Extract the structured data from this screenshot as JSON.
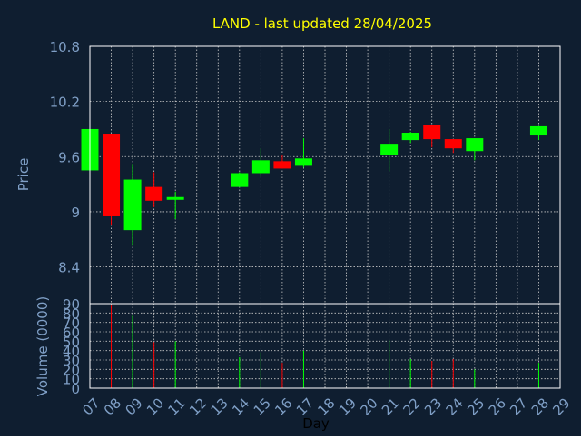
{
  "colors": {
    "background": "#0f1e30",
    "plot_background": "#0f1e30",
    "frame": "#ffffff",
    "grid": "#c8c8c8",
    "title": "#ffff00",
    "axis_text": "#7f9fc6",
    "up": "#00ff00",
    "down": "#ff0000"
  },
  "chart_data": [
    {
      "type": "candlestick",
      "title": "LAND - last updated 28/04/2025",
      "ylabel": "Price",
      "ylim": [
        8.0,
        10.8
      ],
      "yticks": [
        8.4,
        9,
        9.6,
        10.2,
        10.8
      ],
      "ytick_labels": [
        "8.4",
        "9",
        "9.6",
        "10.2",
        "10.8"
      ],
      "grid": true,
      "x_range": [
        7,
        29
      ],
      "candles": [
        {
          "day": 7,
          "open": 9.45,
          "high": 9.9,
          "low": 9.45,
          "close": 9.9
        },
        {
          "day": 8,
          "open": 9.85,
          "high": 9.85,
          "low": 8.85,
          "close": 8.95
        },
        {
          "day": 9,
          "open": 8.8,
          "high": 9.52,
          "low": 8.63,
          "close": 9.35
        },
        {
          "day": 10,
          "open": 9.27,
          "high": 9.43,
          "low": 9.05,
          "close": 9.12
        },
        {
          "day": 11,
          "open": 9.13,
          "high": 9.22,
          "low": 8.92,
          "close": 9.16
        },
        {
          "day": 14,
          "open": 9.27,
          "high": 9.43,
          "low": 9.27,
          "close": 9.42
        },
        {
          "day": 15,
          "open": 9.42,
          "high": 9.69,
          "low": 9.38,
          "close": 9.56
        },
        {
          "day": 16,
          "open": 9.55,
          "high": 9.62,
          "low": 9.47,
          "close": 9.47
        },
        {
          "day": 17,
          "open": 9.5,
          "high": 9.8,
          "low": 9.48,
          "close": 9.58
        },
        {
          "day": 21,
          "open": 9.62,
          "high": 9.9,
          "low": 9.44,
          "close": 9.74
        },
        {
          "day": 22,
          "open": 9.78,
          "high": 9.87,
          "low": 9.75,
          "close": 9.86
        },
        {
          "day": 23,
          "open": 9.94,
          "high": 9.94,
          "low": 9.7,
          "close": 9.79
        },
        {
          "day": 24,
          "open": 9.79,
          "high": 9.79,
          "low": 9.64,
          "close": 9.69
        },
        {
          "day": 25,
          "open": 9.66,
          "high": 9.8,
          "low": 9.56,
          "close": 9.8
        },
        {
          "day": 28,
          "open": 9.83,
          "high": 9.93,
          "low": 9.78,
          "close": 9.93
        }
      ]
    },
    {
      "type": "bar",
      "ylabel": "Volume (0000)",
      "xlabel": "Day",
      "ylim": [
        0,
        90
      ],
      "yticks": [
        0,
        10,
        20,
        30,
        40,
        50,
        60,
        70,
        80,
        90
      ],
      "ytick_labels": [
        "0",
        "10",
        "20",
        "30",
        "40",
        "50",
        "60",
        "70",
        "80",
        "90"
      ],
      "grid": true,
      "categories": [
        "07",
        "08",
        "09",
        "10",
        "11",
        "12",
        "13",
        "14",
        "15",
        "16",
        "17",
        "18",
        "19",
        "20",
        "21",
        "22",
        "23",
        "24",
        "25",
        "26",
        "27",
        "28",
        "29"
      ],
      "volumes": [
        {
          "day": 8,
          "value": 88,
          "color": "down"
        },
        {
          "day": 9,
          "value": 77,
          "color": "up"
        },
        {
          "day": 10,
          "value": 49,
          "color": "down"
        },
        {
          "day": 11,
          "value": 50,
          "color": "up"
        },
        {
          "day": 14,
          "value": 33,
          "color": "up"
        },
        {
          "day": 15,
          "value": 38,
          "color": "up"
        },
        {
          "day": 16,
          "value": 27,
          "color": "down"
        },
        {
          "day": 17,
          "value": 40,
          "color": "up"
        },
        {
          "day": 21,
          "value": 51,
          "color": "up"
        },
        {
          "day": 22,
          "value": 31,
          "color": "up"
        },
        {
          "day": 23,
          "value": 29,
          "color": "down"
        },
        {
          "day": 24,
          "value": 31,
          "color": "down"
        },
        {
          "day": 25,
          "value": 20,
          "color": "up"
        },
        {
          "day": 28,
          "value": 27,
          "color": "up"
        }
      ]
    }
  ]
}
